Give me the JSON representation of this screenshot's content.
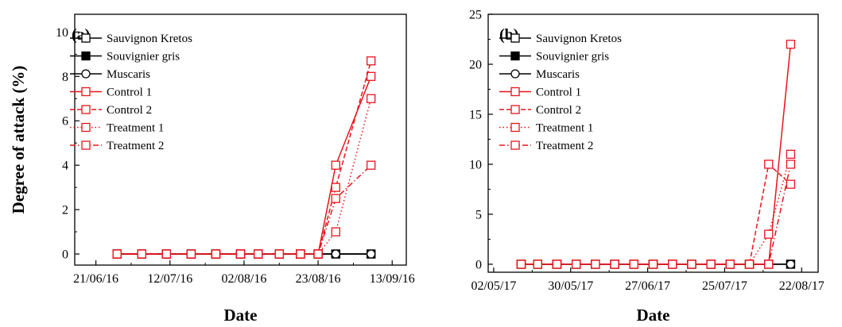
{
  "chart_data": [
    {
      "type": "line",
      "panel_label": "(a)",
      "xlabel": "Date",
      "ylabel": "Degree of attack (%)",
      "xlim": [
        "2016-06-15",
        "2016-09-17"
      ],
      "ylim": [
        -0.5,
        10.8
      ],
      "x_ticks": [
        "2016-06-21",
        "2016-07-12",
        "2016-08-02",
        "2016-08-23",
        "2016-09-13"
      ],
      "x_tick_labels": [
        "21/06/16",
        "12/07/16",
        "02/08/16",
        "23/08/16",
        "13/09/16"
      ],
      "y_ticks": [
        0,
        2,
        4,
        6,
        8,
        10
      ],
      "y_tick_labels": [
        "0",
        "2",
        "4",
        "6",
        "8",
        "10"
      ],
      "legend_position": "upper-left",
      "grid": false,
      "series": [
        {
          "name": "Sauvignon Kretos",
          "color": "#000000",
          "dash": "solid",
          "marker": "square-open",
          "x": [
            "2016-06-27",
            "2016-07-04",
            "2016-07-11",
            "2016-07-18",
            "2016-07-25",
            "2016-08-01",
            "2016-08-06",
            "2016-08-12",
            "2016-08-18",
            "2016-08-23",
            "2016-08-28",
            "2016-09-07"
          ],
          "y": [
            0,
            0,
            0,
            0,
            0,
            0,
            0,
            0,
            0,
            0,
            0,
            0
          ]
        },
        {
          "name": "Souvignier gris",
          "color": "#000000",
          "dash": "solid",
          "marker": "square-filled",
          "x": [
            "2016-06-27",
            "2016-07-04",
            "2016-07-11",
            "2016-07-18",
            "2016-07-25",
            "2016-08-01",
            "2016-08-06",
            "2016-08-12",
            "2016-08-18",
            "2016-08-23",
            "2016-08-28",
            "2016-09-07"
          ],
          "y": [
            0,
            0,
            0,
            0,
            0,
            0,
            0,
            0,
            0,
            0,
            0,
            0
          ]
        },
        {
          "name": "Muscaris",
          "color": "#000000",
          "dash": "solid",
          "marker": "circle-open",
          "x": [
            "2016-06-27",
            "2016-07-04",
            "2016-07-11",
            "2016-07-18",
            "2016-07-25",
            "2016-08-01",
            "2016-08-06",
            "2016-08-12",
            "2016-08-18",
            "2016-08-23",
            "2016-08-28",
            "2016-09-07"
          ],
          "y": [
            0,
            0,
            0,
            0,
            0,
            0,
            0,
            0,
            0,
            0,
            0,
            0
          ]
        },
        {
          "name": "Control 1",
          "color": "#e8141c",
          "dash": "solid",
          "marker": "square-open",
          "x": [
            "2016-06-27",
            "2016-07-04",
            "2016-07-11",
            "2016-07-18",
            "2016-07-25",
            "2016-08-01",
            "2016-08-06",
            "2016-08-12",
            "2016-08-18",
            "2016-08-23",
            "2016-08-28",
            "2016-09-07"
          ],
          "y": [
            0,
            0,
            0,
            0,
            0,
            0,
            0,
            0,
            0,
            0,
            4,
            8
          ]
        },
        {
          "name": "Control 2",
          "color": "#e8141c",
          "dash": "dash",
          "marker": "square-open",
          "x": [
            "2016-06-27",
            "2016-07-04",
            "2016-07-11",
            "2016-07-18",
            "2016-07-25",
            "2016-08-01",
            "2016-08-06",
            "2016-08-12",
            "2016-08-18",
            "2016-08-23",
            "2016-08-28",
            "2016-09-07"
          ],
          "y": [
            0,
            0,
            0,
            0,
            0,
            0,
            0,
            0,
            0,
            0,
            3,
            8.7
          ]
        },
        {
          "name": "Treatment 1",
          "color": "#e8141c",
          "dash": "dot",
          "marker": "square-open",
          "x": [
            "2016-06-27",
            "2016-07-04",
            "2016-07-11",
            "2016-07-18",
            "2016-07-25",
            "2016-08-01",
            "2016-08-06",
            "2016-08-12",
            "2016-08-18",
            "2016-08-23",
            "2016-08-28",
            "2016-09-07"
          ],
          "y": [
            0,
            0,
            0,
            0,
            0,
            0,
            0,
            0,
            0,
            0,
            1,
            7
          ]
        },
        {
          "name": "Treatment 2",
          "color": "#e8141c",
          "dash": "dashdot",
          "marker": "square-open",
          "x": [
            "2016-06-27",
            "2016-07-04",
            "2016-07-11",
            "2016-07-18",
            "2016-07-25",
            "2016-08-01",
            "2016-08-06",
            "2016-08-12",
            "2016-08-18",
            "2016-08-23",
            "2016-08-28",
            "2016-09-07"
          ],
          "y": [
            0,
            0,
            0,
            0,
            0,
            0,
            0,
            0,
            0,
            0,
            2.5,
            4
          ]
        }
      ]
    },
    {
      "type": "line",
      "panel_label": "(b)",
      "xlabel": "Date",
      "ylabel": "",
      "xlim": [
        "2017-04-30",
        "2017-08-28"
      ],
      "ylim": [
        -0.8,
        25
      ],
      "x_ticks": [
        "2017-05-02",
        "2017-05-30",
        "2017-06-27",
        "2017-07-25",
        "2017-08-22"
      ],
      "x_tick_labels": [
        "02/05/17",
        "30/05/17",
        "27/06/17",
        "25/07/17",
        "22/08/17"
      ],
      "y_ticks": [
        0,
        5,
        10,
        15,
        20,
        25
      ],
      "y_tick_labels": [
        "0",
        "5",
        "10",
        "15",
        "20",
        "25"
      ],
      "legend_position": "upper-left",
      "grid": false,
      "series": [
        {
          "name": "Sauvignon Kretos",
          "color": "#000000",
          "dash": "solid",
          "marker": "square-open",
          "x": [
            "2017-05-12",
            "2017-05-18",
            "2017-05-25",
            "2017-06-01",
            "2017-06-08",
            "2017-06-15",
            "2017-06-22",
            "2017-06-29",
            "2017-07-06",
            "2017-07-13",
            "2017-07-20",
            "2017-07-27",
            "2017-08-03",
            "2017-08-10",
            "2017-08-18"
          ],
          "y": [
            0,
            0,
            0,
            0,
            0,
            0,
            0,
            0,
            0,
            0,
            0,
            0,
            0,
            0,
            0
          ]
        },
        {
          "name": "Souvignier gris",
          "color": "#000000",
          "dash": "solid",
          "marker": "square-filled",
          "x": [
            "2017-05-12",
            "2017-05-18",
            "2017-05-25",
            "2017-06-01",
            "2017-06-08",
            "2017-06-15",
            "2017-06-22",
            "2017-06-29",
            "2017-07-06",
            "2017-07-13",
            "2017-07-20",
            "2017-07-27",
            "2017-08-03",
            "2017-08-10",
            "2017-08-18"
          ],
          "y": [
            0,
            0,
            0,
            0,
            0,
            0,
            0,
            0,
            0,
            0,
            0,
            0,
            0,
            0,
            0
          ]
        },
        {
          "name": "Muscaris",
          "color": "#000000",
          "dash": "solid",
          "marker": "circle-open",
          "x": [
            "2017-05-12",
            "2017-05-18",
            "2017-05-25",
            "2017-06-01",
            "2017-06-08",
            "2017-06-15",
            "2017-06-22",
            "2017-06-29",
            "2017-07-06",
            "2017-07-13",
            "2017-07-20",
            "2017-07-27",
            "2017-08-03",
            "2017-08-10",
            "2017-08-18"
          ],
          "y": [
            0,
            0,
            0,
            0,
            0,
            0,
            0,
            0,
            0,
            0,
            0,
            0,
            0,
            0,
            0
          ]
        },
        {
          "name": "Control 1",
          "color": "#e8141c",
          "dash": "solid",
          "marker": "square-open",
          "x": [
            "2017-05-12",
            "2017-05-18",
            "2017-05-25",
            "2017-06-01",
            "2017-06-08",
            "2017-06-15",
            "2017-06-22",
            "2017-06-29",
            "2017-07-06",
            "2017-07-13",
            "2017-07-20",
            "2017-07-27",
            "2017-08-03",
            "2017-08-10",
            "2017-08-18"
          ],
          "y": [
            0,
            0,
            0,
            0,
            0,
            0,
            0,
            0,
            0,
            0,
            0,
            0,
            0,
            0,
            22
          ]
        },
        {
          "name": "Control 2",
          "color": "#e8141c",
          "dash": "dash",
          "marker": "square-open",
          "x": [
            "2017-05-12",
            "2017-05-18",
            "2017-05-25",
            "2017-06-01",
            "2017-06-08",
            "2017-06-15",
            "2017-06-22",
            "2017-06-29",
            "2017-07-06",
            "2017-07-13",
            "2017-07-20",
            "2017-07-27",
            "2017-08-03",
            "2017-08-10",
            "2017-08-18"
          ],
          "y": [
            0,
            0,
            0,
            0,
            0,
            0,
            0,
            0,
            0,
            0,
            0,
            0,
            0,
            10,
            8
          ]
        },
        {
          "name": "Treatment 1",
          "color": "#e8141c",
          "dash": "dot",
          "marker": "square-open",
          "x": [
            "2017-05-12",
            "2017-05-18",
            "2017-05-25",
            "2017-06-01",
            "2017-06-08",
            "2017-06-15",
            "2017-06-22",
            "2017-06-29",
            "2017-07-06",
            "2017-07-13",
            "2017-07-20",
            "2017-07-27",
            "2017-08-03",
            "2017-08-10",
            "2017-08-18"
          ],
          "y": [
            0,
            0,
            0,
            0,
            0,
            0,
            0,
            0,
            0,
            0,
            0,
            0,
            0,
            3,
            11
          ]
        },
        {
          "name": "Treatment 2",
          "color": "#e8141c",
          "dash": "dashdot",
          "marker": "square-open",
          "x": [
            "2017-05-12",
            "2017-05-18",
            "2017-05-25",
            "2017-06-01",
            "2017-06-08",
            "2017-06-15",
            "2017-06-22",
            "2017-06-29",
            "2017-07-06",
            "2017-07-13",
            "2017-07-20",
            "2017-07-27",
            "2017-08-03",
            "2017-08-10",
            "2017-08-18"
          ],
          "y": [
            0,
            0,
            0,
            0,
            0,
            0,
            0,
            0,
            0,
            0,
            0,
            0,
            0,
            0,
            10
          ]
        }
      ]
    }
  ]
}
